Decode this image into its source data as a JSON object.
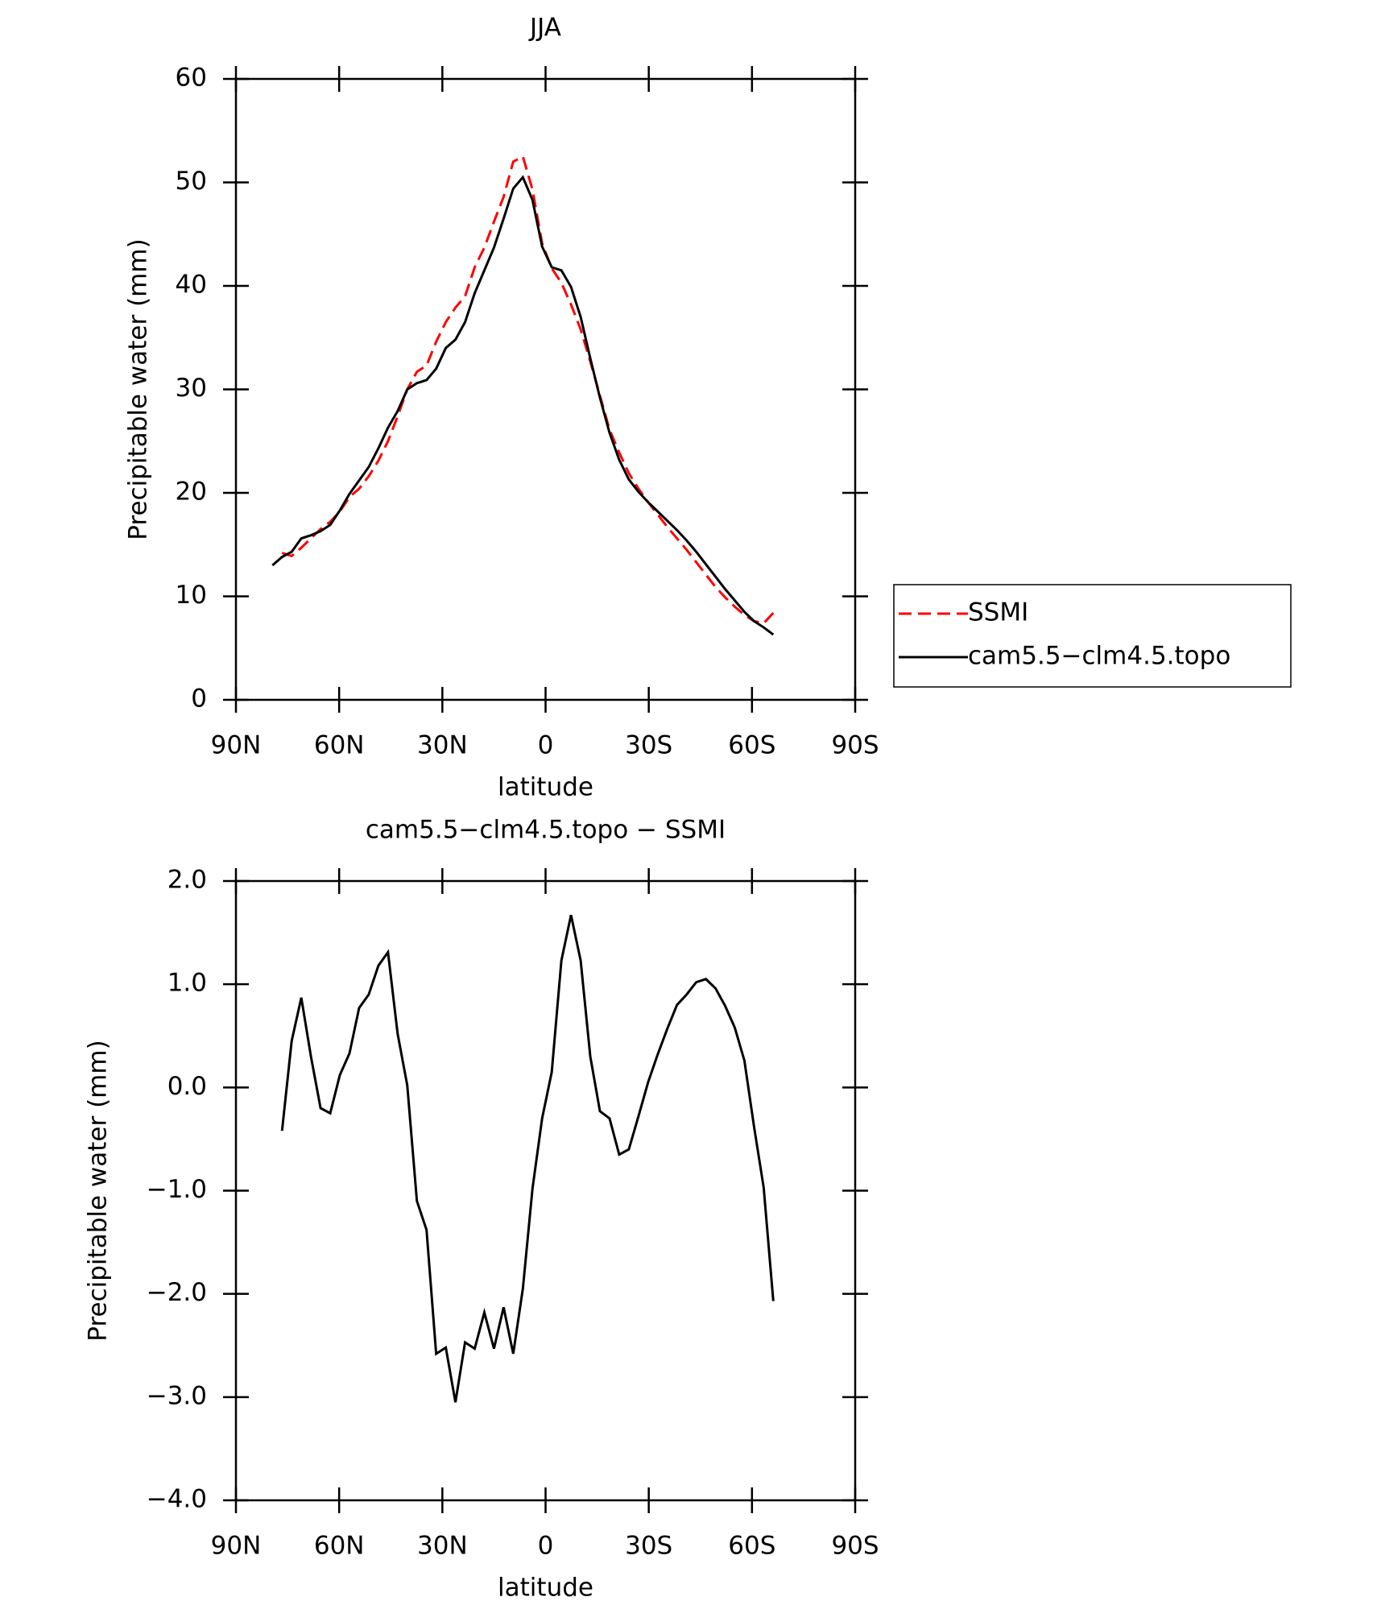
{
  "chart_data": [
    {
      "type": "line",
      "title": "JJA",
      "xlabel": "latitude",
      "ylabel": "Precipitable water (mm)",
      "x": [
        79.4,
        76.6,
        73.8,
        71.0,
        68.2,
        65.4,
        62.6,
        59.8,
        57.0,
        54.2,
        51.4,
        48.6,
        45.8,
        43.0,
        40.2,
        37.4,
        34.6,
        31.8,
        29.0,
        26.2,
        23.4,
        20.6,
        17.8,
        15.0,
        12.2,
        9.4,
        6.6,
        3.8,
        1.0,
        -1.8,
        -4.6,
        -7.4,
        -10.2,
        -13.0,
        -15.8,
        -18.6,
        -21.4,
        -24.2,
        -27.0,
        -29.8,
        -32.6,
        -35.4,
        -38.2,
        -41.0,
        -43.8,
        -46.6,
        -49.4,
        -52.2,
        -55.0,
        -57.8,
        -60.6,
        -63.4,
        -66.2
      ],
      "series": [
        {
          "name": "SSMI",
          "color": "#ff0000",
          "dashed": true,
          "values": [
            null,
            14.2,
            13.9,
            14.7,
            15.6,
            16.5,
            17.2,
            18.2,
            19.6,
            20.4,
            21.6,
            23.1,
            25.0,
            27.4,
            30.0,
            31.7,
            32.3,
            34.6,
            36.5,
            37.9,
            39.0,
            41.8,
            43.7,
            46.2,
            48.6,
            52.0,
            52.5,
            49.3,
            44.1,
            41.7,
            40.3,
            38.2,
            35.8,
            32.7,
            29.4,
            26.1,
            23.9,
            21.9,
            20.4,
            19.1,
            17.9,
            16.7,
            15.6,
            14.5,
            13.3,
            12.1,
            10.9,
            9.9,
            9.0,
            8.2,
            7.6,
            7.4,
            8.4
          ]
        },
        {
          "name": "cam5.5−clm4.5.topo",
          "color": "#000000",
          "dashed": false,
          "values": [
            13.0,
            13.8,
            14.3,
            15.6,
            15.9,
            16.3,
            16.9,
            18.3,
            19.9,
            21.2,
            22.5,
            24.3,
            26.3,
            27.9,
            30.0,
            30.6,
            30.9,
            32.0,
            34.0,
            34.8,
            36.5,
            39.3,
            41.5,
            43.7,
            46.5,
            49.4,
            50.5,
            48.3,
            43.8,
            41.8,
            41.5,
            39.9,
            37.0,
            33.0,
            29.2,
            25.8,
            23.2,
            21.3,
            20.1,
            19.1,
            18.2,
            17.3,
            16.4,
            15.4,
            14.3,
            13.1,
            11.9,
            10.7,
            9.6,
            8.5,
            7.6,
            7.0,
            6.3
          ]
        }
      ],
      "xlim": [
        90,
        -90
      ],
      "xticks": [
        {
          "value": 90,
          "label": "90N"
        },
        {
          "value": 60,
          "label": "60N"
        },
        {
          "value": 30,
          "label": "30N"
        },
        0,
        {
          "value": -30,
          "label": "30S"
        },
        {
          "value": -60,
          "label": "60S"
        },
        {
          "value": -90,
          "label": "90S"
        }
      ],
      "ylim": [
        0,
        60
      ],
      "yticks": [
        0,
        10,
        20,
        30,
        40,
        50,
        60
      ],
      "legend": "right"
    },
    {
      "type": "line",
      "title": "cam5.5−clm4.5.topo − SSMI",
      "xlabel": "latitude",
      "ylabel": "Precipitable water (mm)",
      "x": [
        76.6,
        73.8,
        71.0,
        68.2,
        65.4,
        62.6,
        59.8,
        57.0,
        54.2,
        51.4,
        48.6,
        45.8,
        43.0,
        40.2,
        37.4,
        34.6,
        31.8,
        29.0,
        26.2,
        23.4,
        20.6,
        17.8,
        15.0,
        12.2,
        9.4,
        6.6,
        3.8,
        1.0,
        -1.8,
        -4.6,
        -7.4,
        -10.2,
        -13.0,
        -15.8,
        -18.6,
        -21.4,
        -24.2,
        -27.0,
        -29.8,
        -32.6,
        -35.4,
        -38.2,
        -41.0,
        -43.8,
        -46.6,
        -49.4,
        -52.2,
        -55.0,
        -57.8,
        -60.6,
        -63.4,
        -66.2
      ],
      "series": [
        {
          "name": "cam5.5−clm4.5.topo − SSMI",
          "color": "#000000",
          "dashed": false,
          "values": [
            -0.42,
            0.45,
            0.87,
            0.3,
            -0.2,
            -0.25,
            0.12,
            0.33,
            0.77,
            0.9,
            1.18,
            1.31,
            0.52,
            0.02,
            -1.1,
            -1.38,
            -2.58,
            -2.52,
            -3.05,
            -2.47,
            -2.53,
            -2.18,
            -2.53,
            -2.13,
            -2.58,
            -1.95,
            -0.98,
            -0.3,
            0.15,
            1.23,
            1.67,
            1.23,
            0.3,
            -0.23,
            -0.3,
            -0.65,
            -0.6,
            -0.28,
            0.05,
            0.32,
            0.57,
            0.8,
            0.9,
            1.02,
            1.05,
            0.96,
            0.79,
            0.58,
            0.26,
            -0.38,
            -0.97,
            -2.07
          ]
        }
      ],
      "xlim": [
        90,
        -90
      ],
      "xticks": [
        {
          "value": 90,
          "label": "90N"
        },
        {
          "value": 60,
          "label": "60N"
        },
        {
          "value": 30,
          "label": "30N"
        },
        0,
        {
          "value": -30,
          "label": "30S"
        },
        {
          "value": -60,
          "label": "60S"
        },
        {
          "value": -90,
          "label": "90S"
        }
      ],
      "ylim": [
        -4,
        2
      ],
      "yticks": [
        {
          "value": -4,
          "label": "−4.0"
        },
        {
          "value": -3,
          "label": "−3.0"
        },
        {
          "value": -2,
          "label": "−2.0"
        },
        {
          "value": -1,
          "label": "−1.0"
        },
        {
          "value": 0,
          "label": "0.0"
        },
        {
          "value": 1,
          "label": "1.0"
        },
        {
          "value": 2,
          "label": "2.0"
        }
      ]
    }
  ]
}
